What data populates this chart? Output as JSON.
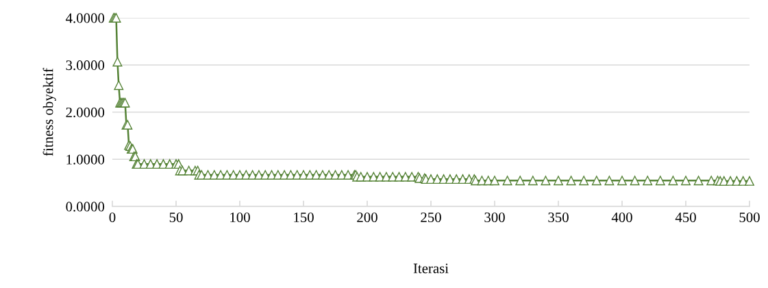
{
  "chart_data": {
    "type": "line",
    "xlabel": "Iterasi",
    "ylabel": "fitness obyektif",
    "x": [
      1,
      2,
      3,
      4,
      5,
      6,
      7,
      8,
      9,
      10,
      11,
      12,
      13,
      14,
      15,
      16,
      17,
      18,
      19,
      20,
      25,
      30,
      35,
      40,
      45,
      50,
      52,
      53,
      55,
      60,
      65,
      67,
      68,
      70,
      75,
      80,
      85,
      90,
      95,
      100,
      105,
      110,
      115,
      120,
      125,
      130,
      135,
      140,
      145,
      150,
      155,
      160,
      165,
      170,
      175,
      180,
      185,
      190,
      191,
      192,
      195,
      200,
      205,
      210,
      215,
      220,
      225,
      230,
      235,
      240,
      241,
      245,
      246,
      250,
      255,
      260,
      265,
      270,
      275,
      280,
      284,
      285,
      290,
      295,
      300,
      310,
      320,
      330,
      340,
      350,
      360,
      370,
      380,
      390,
      400,
      410,
      420,
      430,
      440,
      450,
      460,
      470,
      475,
      477,
      480,
      485,
      490,
      495,
      500
    ],
    "series": [
      {
        "color": "#548235",
        "values": [
          4.0,
          4.0,
          4.0,
          3.07,
          2.57,
          2.2,
          2.2,
          2.2,
          2.2,
          2.2,
          1.73,
          1.73,
          1.3,
          1.28,
          1.22,
          1.22,
          1.06,
          1.06,
          0.9,
          0.9,
          0.9,
          0.9,
          0.9,
          0.9,
          0.9,
          0.9,
          0.9,
          0.76,
          0.76,
          0.76,
          0.76,
          0.76,
          0.67,
          0.67,
          0.67,
          0.67,
          0.67,
          0.67,
          0.67,
          0.67,
          0.67,
          0.67,
          0.67,
          0.67,
          0.67,
          0.67,
          0.67,
          0.67,
          0.67,
          0.67,
          0.67,
          0.67,
          0.67,
          0.67,
          0.67,
          0.67,
          0.67,
          0.67,
          0.67,
          0.63,
          0.63,
          0.63,
          0.63,
          0.63,
          0.63,
          0.63,
          0.63,
          0.63,
          0.63,
          0.63,
          0.6,
          0.6,
          0.58,
          0.58,
          0.58,
          0.58,
          0.58,
          0.58,
          0.58,
          0.58,
          0.58,
          0.55,
          0.55,
          0.55,
          0.55,
          0.55,
          0.55,
          0.55,
          0.55,
          0.55,
          0.55,
          0.55,
          0.55,
          0.55,
          0.55,
          0.55,
          0.55,
          0.55,
          0.55,
          0.55,
          0.55,
          0.55,
          0.55,
          0.54,
          0.54,
          0.54,
          0.54,
          0.54,
          0.54
        ]
      }
    ],
    "xlim": [
      0,
      500
    ],
    "xticks": [
      0,
      50,
      100,
      150,
      200,
      250,
      300,
      350,
      400,
      450,
      500
    ],
    "ylim": [
      0,
      4
    ],
    "yticks": [
      {
        "value": 0,
        "label": "0.0000"
      },
      {
        "value": 1,
        "label": "1.0000"
      },
      {
        "value": 2,
        "label": "2.0000"
      },
      {
        "value": 3,
        "label": "3.0000"
      },
      {
        "value": 4,
        "label": "4.0000"
      }
    ],
    "grid": "y",
    "marker": "triangle",
    "line_style": "solid"
  }
}
